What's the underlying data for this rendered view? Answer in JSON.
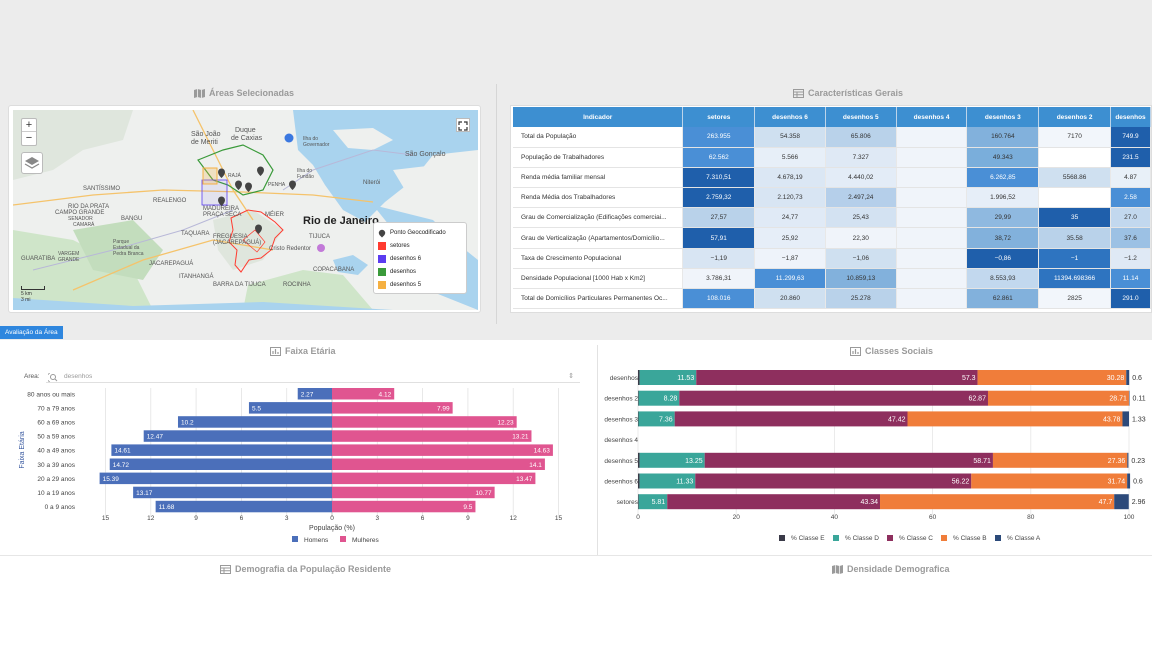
{
  "map_section": {
    "title": "Áreas Selecionadas",
    "place_labels": [
      {
        "text": "Duque",
        "size": 7,
        "bold": false
      },
      {
        "text": "de Caxias",
        "size": 7,
        "bold": false
      },
      {
        "text": "São João",
        "size": 7,
        "bold": false
      },
      {
        "text": "de Meriti",
        "size": 7,
        "bold": false
      },
      {
        "text": "Ilha do",
        "size": 5,
        "bold": false
      },
      {
        "text": "Governador",
        "size": 5,
        "bold": false
      },
      {
        "text": "São Gonçalo",
        "size": 7,
        "bold": false
      },
      {
        "text": "Ilha do",
        "size": 5,
        "bold": false
      },
      {
        "text": "Fundão",
        "size": 5,
        "bold": false
      },
      {
        "text": "Niterói",
        "size": 6,
        "bold": false
      },
      {
        "text": "SANTÍSSIMO",
        "size": 6,
        "bold": false
      },
      {
        "text": "RIO DA PRATA",
        "size": 6,
        "bold": false
      },
      {
        "text": "CAMPO GRANDE",
        "size": 6,
        "bold": false
      },
      {
        "text": "SENADOR",
        "size": 5,
        "bold": false
      },
      {
        "text": "CAMARÁ",
        "size": 5,
        "bold": false
      },
      {
        "text": "BANGU",
        "size": 6,
        "bold": false
      },
      {
        "text": "REALENGO",
        "size": 6,
        "bold": false
      },
      {
        "text": "MADUREIRA",
        "size": 6,
        "bold": false
      },
      {
        "text": "PRAÇA SECA",
        "size": 6,
        "bold": false
      },
      {
        "text": "MÉIER",
        "size": 6,
        "bold": false
      },
      {
        "text": "Rio de Janeiro",
        "size": 11,
        "bold": true
      },
      {
        "text": "TAQUARA",
        "size": 6,
        "bold": false
      },
      {
        "text": "FREGUESIA",
        "size": 6,
        "bold": false
      },
      {
        "text": "(JACAREPAGUÁ)",
        "size": 6,
        "bold": false
      },
      {
        "text": "TIJUCA",
        "size": 6,
        "bold": false
      },
      {
        "text": "Cristo Redentor",
        "size": 6,
        "bold": false
      },
      {
        "text": "Parque",
        "size": 5,
        "bold": false
      },
      {
        "text": "Estadual da",
        "size": 5,
        "bold": false
      },
      {
        "text": "Pedra Branca",
        "size": 5,
        "bold": false
      },
      {
        "text": "VARGEM",
        "size": 5,
        "bold": false
      },
      {
        "text": "GRANDE",
        "size": 5,
        "bold": false
      },
      {
        "text": "JACAREPAGUÁ",
        "size": 6,
        "bold": false
      },
      {
        "text": "GUARATIBA",
        "size": 6,
        "bold": false
      },
      {
        "text": "ITANHANGÁ",
        "size": 6,
        "bold": false
      },
      {
        "text": "COPACABANA",
        "size": 6,
        "bold": false
      },
      {
        "text": "BARRA DA TIJUCA",
        "size": 6,
        "bold": false
      },
      {
        "text": "ROCINHA",
        "size": 6,
        "bold": false
      },
      {
        "text": "RAJÁ",
        "size": 5,
        "bold": false
      },
      {
        "text": "PENHA",
        "size": 5,
        "bold": false
      }
    ],
    "zoom_in": "+",
    "zoom_out": "−",
    "scale": [
      "5 km",
      "3 mi"
    ],
    "legend": [
      {
        "label": "Ponto Geocodificado",
        "color": "#444444",
        "marker": "pin"
      },
      {
        "label": "setores",
        "color": "#ff3b30",
        "marker": "square"
      },
      {
        "label": "desenhos 6",
        "color": "#5b3cf0",
        "marker": "square"
      },
      {
        "label": "desenhos",
        "color": "#3a9a3a",
        "marker": "square"
      },
      {
        "label": "desenhos 5",
        "color": "#f5b041",
        "marker": "square"
      }
    ]
  },
  "table_section": {
    "title": "Características Gerais",
    "columns": [
      "Indicador",
      "setores",
      "desenhos 6",
      "desenhos 5",
      "desenhos 4",
      "desenhos 3",
      "desenhos 2",
      "desenhos"
    ],
    "rows": [
      {
        "label": "Total da População",
        "cells": [
          {
            "v": "263.955",
            "c": "#4a8fd6",
            "t": "#fff"
          },
          {
            "v": "54.358",
            "c": "#cfe0f0",
            "t": "#333"
          },
          {
            "v": "65.806",
            "c": "#b9d2ea",
            "t": "#333"
          },
          {
            "v": "",
            "c": "#f0f4fa",
            "t": "#333"
          },
          {
            "v": "160.764",
            "c": "#82b1dc",
            "t": "#333"
          },
          {
            "v": "7170",
            "c": "#f2f6fb",
            "t": "#333"
          },
          {
            "v": "749.9",
            "c": "#1f5fab",
            "t": "#fff"
          }
        ]
      },
      {
        "label": "População de Trabalhadores",
        "cells": [
          {
            "v": "62.562",
            "c": "#4a8fd6",
            "t": "#fff"
          },
          {
            "v": "5.566",
            "c": "#e7eff8",
            "t": "#333"
          },
          {
            "v": "7.327",
            "c": "#dfe9f5",
            "t": "#333"
          },
          {
            "v": "",
            "c": "#f0f4fa",
            "t": "#333"
          },
          {
            "v": "49.343",
            "c": "#7aaedb",
            "t": "#333"
          },
          {
            "v": "",
            "c": "#ffffff",
            "t": "#333"
          },
          {
            "v": "231.5",
            "c": "#1f5fab",
            "t": "#fff"
          }
        ]
      },
      {
        "label": "Renda média familiar mensal",
        "cells": [
          {
            "v": "7.310,51",
            "c": "#1f5fab",
            "t": "#fff"
          },
          {
            "v": "4.678,19",
            "c": "#dbe7f4",
            "t": "#333"
          },
          {
            "v": "4.440,02",
            "c": "#e3ecf7",
            "t": "#333"
          },
          {
            "v": "",
            "c": "#f0f4fa",
            "t": "#333"
          },
          {
            "v": "6.262,85",
            "c": "#4a8fd6",
            "t": "#fff"
          },
          {
            "v": "5568.86",
            "c": "#cfe0f0",
            "t": "#333"
          },
          {
            "v": "4.87",
            "c": "#e8f0f8",
            "t": "#333"
          }
        ]
      },
      {
        "label": "Renda Média dos Trabalhadores",
        "cells": [
          {
            "v": "2.759,32",
            "c": "#1f5fab",
            "t": "#fff"
          },
          {
            "v": "2.120,73",
            "c": "#d8e5f3",
            "t": "#333"
          },
          {
            "v": "2.497,24",
            "c": "#b5cfea",
            "t": "#333"
          },
          {
            "v": "",
            "c": "#f0f4fa",
            "t": "#333"
          },
          {
            "v": "1.996,52",
            "c": "#e6eef8",
            "t": "#333"
          },
          {
            "v": "",
            "c": "#ffffff",
            "t": "#333"
          },
          {
            "v": "2.58",
            "c": "#4a8fd6",
            "t": "#fff"
          }
        ]
      },
      {
        "label": "Grau de Comercialização (Edificações comerciai...",
        "cells": [
          {
            "v": "27,57",
            "c": "#b9d2ea",
            "t": "#333"
          },
          {
            "v": "24,77",
            "c": "#e0eaf6",
            "t": "#333"
          },
          {
            "v": "25,43",
            "c": "#d3e2f2",
            "t": "#333"
          },
          {
            "v": "",
            "c": "#f0f4fa",
            "t": "#333"
          },
          {
            "v": "29,99",
            "c": "#8fb9e0",
            "t": "#333"
          },
          {
            "v": "35",
            "c": "#1f5fab",
            "t": "#fff"
          },
          {
            "v": "27.0",
            "c": "#c2d8ee",
            "t": "#333"
          }
        ]
      },
      {
        "label": "Grau de Verticalização (Apartamentos/Domicílio...",
        "cells": [
          {
            "v": "57,91",
            "c": "#1f5fab",
            "t": "#fff"
          },
          {
            "v": "25,92",
            "c": "#e6eef8",
            "t": "#333"
          },
          {
            "v": "22,30",
            "c": "#f0f4fa",
            "t": "#333"
          },
          {
            "v": "",
            "c": "#f0f4fa",
            "t": "#333"
          },
          {
            "v": "38,72",
            "c": "#82b1dc",
            "t": "#333"
          },
          {
            "v": "35.58",
            "c": "#b9d2ea",
            "t": "#333"
          },
          {
            "v": "37.6",
            "c": "#9cc1e4",
            "t": "#333"
          }
        ]
      },
      {
        "label": "Taxa de Crescimento Populacional",
        "cells": [
          {
            "v": "−1,19",
            "c": "#d8e5f3",
            "t": "#333"
          },
          {
            "v": "−1,87",
            "c": "#eef3fa",
            "t": "#333"
          },
          {
            "v": "−1,06",
            "c": "#cfe0f0",
            "t": "#333"
          },
          {
            "v": "",
            "c": "#f0f4fa",
            "t": "#333"
          },
          {
            "v": "−0,86",
            "c": "#1f5fab",
            "t": "#fff"
          },
          {
            "v": "−1",
            "c": "#2e74c0",
            "t": "#fff"
          },
          {
            "v": "−1.2",
            "c": "#dfe9f5",
            "t": "#333"
          }
        ]
      },
      {
        "label": "Densidade Populacional [1000 Hab x Km2]",
        "cells": [
          {
            "v": "3.786,31",
            "c": "#f0f4fa",
            "t": "#333"
          },
          {
            "v": "11.299,63",
            "c": "#4a8fd6",
            "t": "#fff"
          },
          {
            "v": "10.859,13",
            "c": "#82b1dc",
            "t": "#333"
          },
          {
            "v": "",
            "c": "#f0f4fa",
            "t": "#333"
          },
          {
            "v": "8.553,93",
            "c": "#c2d8ee",
            "t": "#333"
          },
          {
            "v": "11394.698366",
            "c": "#2e74c0",
            "t": "#fff"
          },
          {
            "v": "11.14",
            "c": "#4a8fd6",
            "t": "#fff"
          }
        ]
      },
      {
        "label": "Total de Domicílios Particulares Permanentes Oc...",
        "cells": [
          {
            "v": "108.016",
            "c": "#4a8fd6",
            "t": "#fff"
          },
          {
            "v": "20.860",
            "c": "#cfe0f0",
            "t": "#333"
          },
          {
            "v": "25.278",
            "c": "#b9d2ea",
            "t": "#333"
          },
          {
            "v": "",
            "c": "#f0f4fa",
            "t": "#333"
          },
          {
            "v": "62.861",
            "c": "#82b1dc",
            "t": "#333"
          },
          {
            "v": "2825",
            "c": "#f2f6fb",
            "t": "#333"
          },
          {
            "v": "291.0",
            "c": "#1f5fab",
            "t": "#fff"
          }
        ]
      }
    ]
  },
  "area_tab": "Avaliação da Área",
  "age_section": {
    "title": "Faixa Etária",
    "area_label": "Area:",
    "area_value": "desenhos",
    "area_arrow": "⇕"
  },
  "class_section": {
    "title": "Classes Sociais"
  },
  "demo_section": {
    "title": "Demografia da População Residente"
  },
  "density_section": {
    "title": "Densidade Demografica"
  },
  "chart_data": [
    {
      "type": "bar",
      "orientation": "horizontal",
      "title": "Faixa Etária",
      "ylabel": "Faixa Etária",
      "xlabel": "População (%)",
      "categories": [
        "80 anos ou mais",
        "70 a 79 anos",
        "60 a 69 anos",
        "50 a 59 anos",
        "40 a 49 anos",
        "30 a 39 anos",
        "20 a 29 anos",
        "10 a 19 anos",
        "0 a 9 anos"
      ],
      "xlim": [
        -15,
        15
      ],
      "xticks": [
        "15",
        "12",
        "9",
        "6",
        "3",
        "0",
        "3",
        "6",
        "9",
        "12",
        "15"
      ],
      "series": [
        {
          "name": "Homens",
          "color": "#4b6fba",
          "values": [
            2.27,
            5.5,
            10.2,
            12.47,
            14.61,
            14.72,
            15.39,
            13.17,
            11.68
          ]
        },
        {
          "name": "Mulheres",
          "color": "#e05590",
          "values": [
            4.12,
            7.99,
            12.23,
            13.21,
            14.63,
            14.1,
            13.47,
            10.77,
            9.5
          ]
        }
      ],
      "legend": "bottom"
    },
    {
      "type": "bar",
      "orientation": "horizontal",
      "stacked": true,
      "title": "Classes Sociais",
      "categories": [
        "desenhos",
        "desenhos 2",
        "desenhos 3",
        "desenhos 4",
        "desenhos 5",
        "desenhos 6",
        "setores"
      ],
      "xlim": [
        0,
        100
      ],
      "xticks": [
        "0",
        "20",
        "40",
        "60",
        "80",
        "100"
      ],
      "series": [
        {
          "name": "% Classe E",
          "color": "#3a3a48",
          "values": [
            0.33,
            0.13,
            0.11,
            null,
            0.33,
            0.33,
            0.14
          ]
        },
        {
          "name": "% Classe D",
          "color": "#3aa69a",
          "values": [
            11.53,
            8.28,
            7.36,
            null,
            13.25,
            11.33,
            5.81
          ]
        },
        {
          "name": "% Classe C",
          "color": "#8e2f5e",
          "values": [
            57.3,
            62.87,
            47.42,
            null,
            58.71,
            56.22,
            43.34
          ]
        },
        {
          "name": "% Classe B",
          "color": "#f07d3a",
          "values": [
            30.28,
            28.71,
            43.78,
            null,
            27.36,
            31.74,
            47.7
          ]
        },
        {
          "name": "% Classe A",
          "color": "#2c4a7a",
          "values": [
            0.6,
            0.11,
            1.33,
            null,
            0.23,
            0.6,
            2.96
          ]
        }
      ],
      "labels": [
        [
          "",
          "11.53",
          "57.3",
          "30.28",
          "0.6"
        ],
        [
          "",
          "8.28",
          "62.87",
          "28.71",
          "0.11"
        ],
        [
          "",
          "7.36",
          "47.42",
          "43.78",
          "1.33"
        ],
        [
          "",
          "",
          "",
          "",
          ""
        ],
        [
          "",
          "13.25",
          "58.71",
          "27.36",
          "0.23"
        ],
        [
          "",
          "11.33",
          "56.22",
          "31.74",
          "0.6"
        ],
        [
          "",
          "5.81",
          "43.34",
          "47.7",
          "2.96"
        ]
      ],
      "legend": "bottom"
    }
  ]
}
